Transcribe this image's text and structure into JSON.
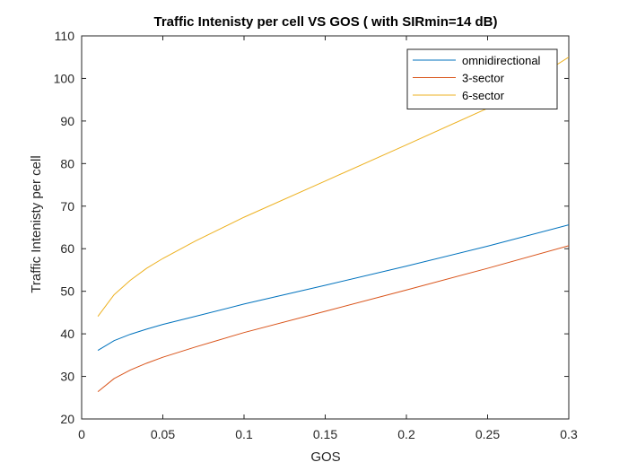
{
  "chart_data": {
    "type": "line",
    "title": "Traffic Intenisty per cell VS GOS ( with SIRmin=14 dB)",
    "xlabel": "GOS",
    "ylabel": "Traffic Intenisty per cell",
    "xlim": [
      0,
      0.3
    ],
    "ylim": [
      20,
      110
    ],
    "xticks": [
      0,
      0.05,
      0.1,
      0.15,
      0.2,
      0.25,
      0.3
    ],
    "xtick_labels": [
      "0",
      "0.05",
      "0.1",
      "0.15",
      "0.2",
      "0.25",
      "0.3"
    ],
    "yticks": [
      20,
      30,
      40,
      50,
      60,
      70,
      80,
      90,
      100,
      110
    ],
    "ytick_labels": [
      "20",
      "30",
      "40",
      "50",
      "60",
      "70",
      "80",
      "90",
      "100",
      "110"
    ],
    "grid": false,
    "legend_position": "top-right",
    "x": [
      0.01,
      0.02,
      0.03,
      0.04,
      0.05,
      0.07,
      0.1,
      0.15,
      0.2,
      0.25,
      0.3
    ],
    "series": [
      {
        "name": "omnidirectional",
        "color": "#0072BD",
        "values": [
          36.1,
          38.4,
          39.9,
          41.1,
          42.2,
          44.1,
          47.0,
          51.4,
          55.9,
          60.6,
          65.6
        ]
      },
      {
        "name": "3-sector",
        "color": "#D95319",
        "values": [
          26.4,
          29.5,
          31.5,
          33.1,
          34.5,
          36.9,
          40.3,
          45.3,
          50.3,
          55.4,
          60.7
        ]
      },
      {
        "name": "6-sector",
        "color": "#EDB120",
        "values": [
          44.1,
          49.2,
          52.6,
          55.4,
          57.7,
          61.8,
          67.4,
          75.9,
          84.4,
          93.0,
          105.0
        ]
      }
    ]
  }
}
